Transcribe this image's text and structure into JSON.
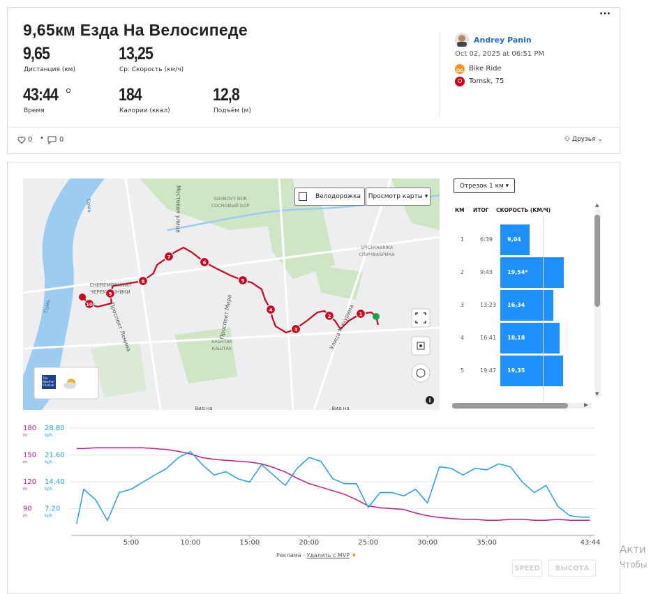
{
  "header": {
    "title": "9,65км Езда На Велосипеде",
    "stats": [
      {
        "value": "9,65",
        "label": "Дистанция (км)"
      },
      {
        "value": "13,25",
        "label": "Ср. Скорость (км/ч)"
      },
      {
        "value": "43:44",
        "label": "Время"
      },
      {
        "value": "184",
        "label": "Калории (ккал)"
      },
      {
        "value": "12,8",
        "label": "Подъём (м)"
      }
    ]
  },
  "athlete": {
    "name": "Andrey Panin",
    "date": "Oct 02, 2025 at 06:51 PM",
    "activity": "Bike Ride",
    "location": "Tomsk, 75"
  },
  "social": {
    "likes": "0",
    "comments": "0",
    "visibility": "Друзья"
  },
  "map": {
    "toggle": "Велодорожка",
    "view": "Просмотр карты",
    "weather": "The Weather Channel",
    "markers": [
      "1",
      "2",
      "3",
      "4",
      "5",
      "6",
      "7",
      "8",
      "9",
      "10"
    ],
    "places": [
      "Томь",
      "Томь",
      "Мостовая улица",
      "SOSNOVY BOR",
      "СОСНОВЫЙ БОР",
      "CHEREMOSHNIKI",
      "ЧЕРЕМОШНИКИ",
      "Проспект Мира",
      "Проспект Ленина",
      "Улица Мичурина",
      "SPICHFABRIKA",
      "СПИЧФАБРИКА",
      "KASHTAK",
      "КАШТАК",
      "Вид на",
      "Вид на"
    ]
  },
  "splits": {
    "selector": "Отрезок 1 км",
    "headers": [
      "КМ",
      "ИТОГ",
      "СКОРОСТЬ (КМ/Ч)"
    ],
    "rows": [
      {
        "km": "1",
        "time": "6:39",
        "speed": {
          "value": 9.04,
          "label": "9,04"
        }
      },
      {
        "km": "2",
        "time": "9:43",
        "speed": {
          "value": 19.54,
          "label": "19,54*"
        }
      },
      {
        "km": "3",
        "time": "13:23",
        "speed": {
          "value": 16.34,
          "label": "16,34"
        }
      },
      {
        "km": "4",
        "time": "16:41",
        "speed": {
          "value": 18.18,
          "label": "18,18"
        }
      },
      {
        "km": "5",
        "time": "19:47",
        "speed": {
          "value": 19.35,
          "label": "19,35"
        }
      }
    ]
  },
  "chart_data": {
    "type": "line",
    "y_unit": "m",
    "y2_unit": "kph",
    "x": [
      0.4,
      1,
      2,
      3,
      4,
      5,
      6,
      7,
      8,
      9,
      10,
      11,
      12,
      13,
      14,
      15,
      16,
      17,
      18,
      19,
      20,
      21,
      22,
      23,
      24,
      25,
      26,
      27,
      28,
      29,
      30,
      31,
      32,
      33,
      34,
      35,
      36,
      37,
      38,
      39,
      40,
      41,
      42,
      43,
      43.7
    ],
    "xlim": [
      0,
      43.733
    ],
    "xticks": [
      {
        "value": 5,
        "label": "5:00"
      },
      {
        "value": 10,
        "label": "10:00"
      },
      {
        "value": 15,
        "label": "15:00"
      },
      {
        "value": 20,
        "label": "20:00"
      },
      {
        "value": 25,
        "label": "25:00"
      },
      {
        "value": 30,
        "label": "30:00"
      },
      {
        "value": 35,
        "label": "35:00"
      },
      {
        "value": 43.733,
        "label": "43:44"
      }
    ],
    "ylim": [
      60,
      180
    ],
    "yticks": [
      90,
      120,
      150,
      180
    ],
    "y2lim": [
      0,
      28.8
    ],
    "y2ticks": [
      {
        "value": 7.2,
        "label": "7.20"
      },
      {
        "value": 14.4,
        "label": "14.40"
      },
      {
        "value": 21.6,
        "label": "21.60"
      },
      {
        "value": 28.8,
        "label": "28.80"
      }
    ],
    "grid": true,
    "series": [
      {
        "name": "ВЫСОТА",
        "color": "#c41c86",
        "values": [
          157,
          157,
          158,
          158,
          158,
          158,
          158,
          157,
          156,
          154,
          151,
          147,
          145,
          144,
          143,
          142,
          140,
          136,
          131,
          124,
          118,
          114,
          110,
          106,
          100,
          93,
          91,
          90,
          89,
          85,
          82,
          80,
          79,
          78,
          78,
          77,
          77,
          78,
          78,
          77,
          77,
          78,
          77,
          77,
          77
        ]
      },
      {
        "name": "SPEED",
        "color": "#1ea0e6",
        "axis": "y2",
        "values": [
          3.1,
          12.4,
          9.6,
          4.0,
          11.5,
          12.4,
          14.3,
          16.2,
          18,
          20.9,
          22.5,
          19,
          16.2,
          17.1,
          15.2,
          14.3,
          19,
          16.2,
          13.4,
          18,
          20.9,
          19.9,
          15.2,
          13.9,
          13.9,
          7.5,
          11.5,
          11.5,
          10.6,
          12.4,
          8.7,
          18.4,
          18,
          16.2,
          18,
          17.6,
          19.2,
          18.4,
          14.3,
          11.5,
          13.4,
          7.8,
          5.3,
          4.9,
          4.9
        ]
      }
    ]
  },
  "footer": {
    "ad": "Реклама -",
    "remove": "Удалить с MVP"
  },
  "watermark": [
    "Акти",
    "Чтобы"
  ]
}
